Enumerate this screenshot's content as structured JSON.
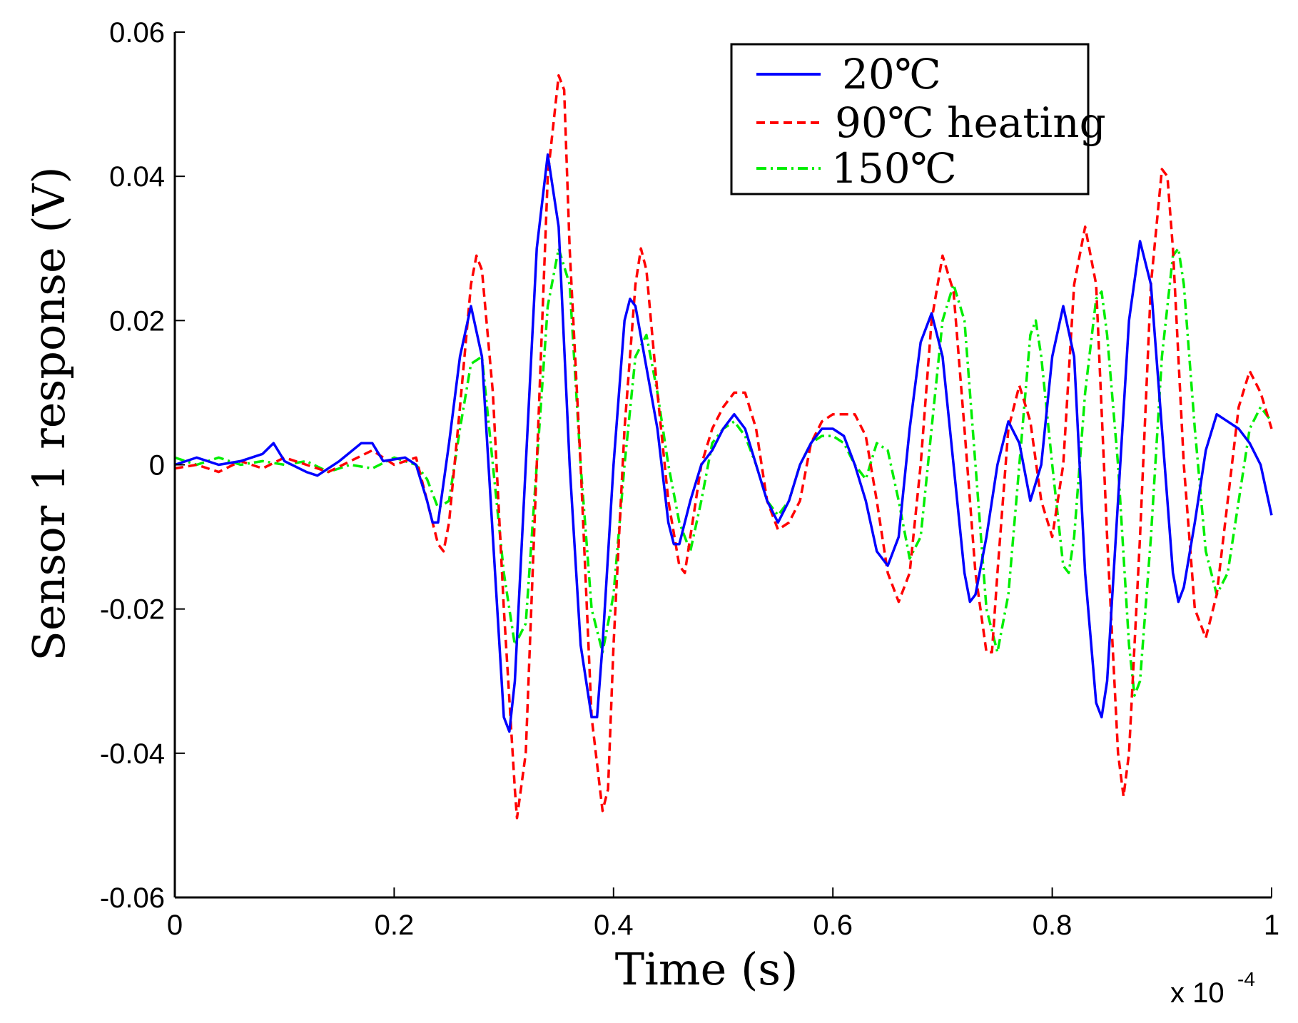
{
  "chart_data": {
    "type": "line",
    "xlabel": "Time (s)",
    "ylabel": "Sensor 1 response (V)",
    "x_multiplier": "x 10",
    "x_multiplier_exp": "-4",
    "xlim": [
      0,
      1
    ],
    "ylim": [
      -0.06,
      0.06
    ],
    "xticks": [
      0,
      0.2,
      0.4,
      0.6,
      0.8,
      1
    ],
    "xtick_labels": [
      "0",
      "0.2",
      "0.4",
      "0.6",
      "0.8",
      "1"
    ],
    "yticks": [
      -0.06,
      -0.04,
      -0.02,
      0,
      0.02,
      0.04,
      0.06
    ],
    "ytick_labels": [
      "-0.06",
      "-0.04",
      "-0.02",
      "0",
      "0.02",
      "0.04",
      "0.06"
    ],
    "grid": false,
    "legend_position": "top-right",
    "series": [
      {
        "name": "20℃",
        "color": "#0000ff",
        "dash": "solid",
        "points": [
          [
            0,
            0
          ],
          [
            0.02,
            0.001
          ],
          [
            0.04,
            0
          ],
          [
            0.06,
            0.0005
          ],
          [
            0.08,
            0.0015
          ],
          [
            0.09,
            0.003
          ],
          [
            0.1,
            0.0005
          ],
          [
            0.12,
            -0.001
          ],
          [
            0.13,
            -0.0015
          ],
          [
            0.15,
            0.0005
          ],
          [
            0.17,
            0.003
          ],
          [
            0.18,
            0.003
          ],
          [
            0.19,
            0.0005
          ],
          [
            0.21,
            0.001
          ],
          [
            0.22,
            0
          ],
          [
            0.23,
            -0.005
          ],
          [
            0.235,
            -0.008
          ],
          [
            0.24,
            -0.008
          ],
          [
            0.25,
            0.003
          ],
          [
            0.26,
            0.015
          ],
          [
            0.27,
            0.022
          ],
          [
            0.28,
            0.015
          ],
          [
            0.29,
            -0.01
          ],
          [
            0.3,
            -0.035
          ],
          [
            0.305,
            -0.037
          ],
          [
            0.31,
            -0.03
          ],
          [
            0.32,
            0
          ],
          [
            0.33,
            0.03
          ],
          [
            0.34,
            0.043
          ],
          [
            0.35,
            0.033
          ],
          [
            0.36,
            0
          ],
          [
            0.37,
            -0.025
          ],
          [
            0.38,
            -0.035
          ],
          [
            0.385,
            -0.035
          ],
          [
            0.39,
            -0.025
          ],
          [
            0.4,
            0
          ],
          [
            0.41,
            0.02
          ],
          [
            0.415,
            0.023
          ],
          [
            0.42,
            0.022
          ],
          [
            0.44,
            0.005
          ],
          [
            0.45,
            -0.008
          ],
          [
            0.455,
            -0.011
          ],
          [
            0.46,
            -0.011
          ],
          [
            0.47,
            -0.005
          ],
          [
            0.48,
            0
          ],
          [
            0.49,
            0.002
          ],
          [
            0.5,
            0.005
          ],
          [
            0.51,
            0.007
          ],
          [
            0.52,
            0.005
          ],
          [
            0.53,
            0
          ],
          [
            0.54,
            -0.005
          ],
          [
            0.55,
            -0.008
          ],
          [
            0.56,
            -0.005
          ],
          [
            0.57,
            0
          ],
          [
            0.58,
            0.003
          ],
          [
            0.59,
            0.005
          ],
          [
            0.6,
            0.005
          ],
          [
            0.61,
            0.004
          ],
          [
            0.62,
            0
          ],
          [
            0.63,
            -0.005
          ],
          [
            0.64,
            -0.012
          ],
          [
            0.65,
            -0.014
          ],
          [
            0.66,
            -0.01
          ],
          [
            0.67,
            0.005
          ],
          [
            0.68,
            0.017
          ],
          [
            0.69,
            0.021
          ],
          [
            0.7,
            0.015
          ],
          [
            0.71,
            0
          ],
          [
            0.72,
            -0.015
          ],
          [
            0.725,
            -0.019
          ],
          [
            0.73,
            -0.018
          ],
          [
            0.74,
            -0.01
          ],
          [
            0.75,
            0
          ],
          [
            0.76,
            0.006
          ],
          [
            0.77,
            0.003
          ],
          [
            0.78,
            -0.005
          ],
          [
            0.79,
            0
          ],
          [
            0.8,
            0.015
          ],
          [
            0.81,
            0.022
          ],
          [
            0.82,
            0.015
          ],
          [
            0.83,
            -0.015
          ],
          [
            0.84,
            -0.033
          ],
          [
            0.845,
            -0.035
          ],
          [
            0.85,
            -0.03
          ],
          [
            0.86,
            -0.005
          ],
          [
            0.87,
            0.02
          ],
          [
            0.88,
            0.031
          ],
          [
            0.89,
            0.025
          ],
          [
            0.9,
            0.005
          ],
          [
            0.91,
            -0.015
          ],
          [
            0.915,
            -0.019
          ],
          [
            0.92,
            -0.017
          ],
          [
            0.93,
            -0.008
          ],
          [
            0.94,
            0.002
          ],
          [
            0.95,
            0.007
          ],
          [
            0.96,
            0.006
          ],
          [
            0.97,
            0.005
          ],
          [
            0.98,
            0.003
          ],
          [
            0.99,
            0
          ],
          [
            1.0,
            -0.007
          ]
        ]
      },
      {
        "name": "90℃ heating",
        "color": "#ff0000",
        "dash": "dashed",
        "points": [
          [
            0,
            -0.0005
          ],
          [
            0.02,
            0
          ],
          [
            0.04,
            -0.001
          ],
          [
            0.06,
            0.0005
          ],
          [
            0.08,
            -0.0005
          ],
          [
            0.1,
            0.001
          ],
          [
            0.12,
            0
          ],
          [
            0.14,
            -0.001
          ],
          [
            0.16,
            0.0005
          ],
          [
            0.18,
            0.002
          ],
          [
            0.2,
            0
          ],
          [
            0.22,
            0.001
          ],
          [
            0.23,
            -0.005
          ],
          [
            0.24,
            -0.011
          ],
          [
            0.245,
            -0.012
          ],
          [
            0.25,
            -0.008
          ],
          [
            0.26,
            0.008
          ],
          [
            0.27,
            0.025
          ],
          [
            0.275,
            0.029
          ],
          [
            0.28,
            0.027
          ],
          [
            0.29,
            0.01
          ],
          [
            0.3,
            -0.02
          ],
          [
            0.31,
            -0.045
          ],
          [
            0.312,
            -0.049
          ],
          [
            0.32,
            -0.04
          ],
          [
            0.33,
            0
          ],
          [
            0.34,
            0.04
          ],
          [
            0.35,
            0.054
          ],
          [
            0.355,
            0.052
          ],
          [
            0.36,
            0.03
          ],
          [
            0.37,
            0
          ],
          [
            0.38,
            -0.035
          ],
          [
            0.39,
            -0.048
          ],
          [
            0.395,
            -0.045
          ],
          [
            0.4,
            -0.025
          ],
          [
            0.41,
            0.005
          ],
          [
            0.42,
            0.025
          ],
          [
            0.425,
            0.03
          ],
          [
            0.43,
            0.027
          ],
          [
            0.44,
            0.01
          ],
          [
            0.45,
            -0.005
          ],
          [
            0.46,
            -0.014
          ],
          [
            0.465,
            -0.015
          ],
          [
            0.47,
            -0.01
          ],
          [
            0.48,
            0
          ],
          [
            0.49,
            0.005
          ],
          [
            0.5,
            0.008
          ],
          [
            0.51,
            0.01
          ],
          [
            0.52,
            0.01
          ],
          [
            0.53,
            0.005
          ],
          [
            0.54,
            -0.005
          ],
          [
            0.55,
            -0.009
          ],
          [
            0.56,
            -0.008
          ],
          [
            0.57,
            -0.005
          ],
          [
            0.58,
            0.003
          ],
          [
            0.59,
            0.006
          ],
          [
            0.6,
            0.007
          ],
          [
            0.61,
            0.007
          ],
          [
            0.62,
            0.007
          ],
          [
            0.63,
            0.004
          ],
          [
            0.64,
            -0.005
          ],
          [
            0.65,
            -0.015
          ],
          [
            0.66,
            -0.019
          ],
          [
            0.67,
            -0.015
          ],
          [
            0.68,
            0
          ],
          [
            0.69,
            0.02
          ],
          [
            0.7,
            0.029
          ],
          [
            0.71,
            0.024
          ],
          [
            0.72,
            0.005
          ],
          [
            0.73,
            -0.015
          ],
          [
            0.74,
            -0.026
          ],
          [
            0.745,
            -0.026
          ],
          [
            0.75,
            -0.015
          ],
          [
            0.76,
            0.005
          ],
          [
            0.77,
            0.011
          ],
          [
            0.78,
            0.006
          ],
          [
            0.79,
            -0.005
          ],
          [
            0.8,
            -0.01
          ],
          [
            0.81,
            0
          ],
          [
            0.82,
            0.025
          ],
          [
            0.83,
            0.033
          ],
          [
            0.84,
            0.025
          ],
          [
            0.85,
            -0.01
          ],
          [
            0.86,
            -0.04
          ],
          [
            0.865,
            -0.046
          ],
          [
            0.87,
            -0.04
          ],
          [
            0.88,
            -0.01
          ],
          [
            0.89,
            0.025
          ],
          [
            0.9,
            0.041
          ],
          [
            0.905,
            0.04
          ],
          [
            0.91,
            0.03
          ],
          [
            0.92,
            0
          ],
          [
            0.93,
            -0.02
          ],
          [
            0.94,
            -0.024
          ],
          [
            0.95,
            -0.018
          ],
          [
            0.96,
            -0.005
          ],
          [
            0.97,
            0.008
          ],
          [
            0.98,
            0.013
          ],
          [
            0.99,
            0.01
          ],
          [
            1.0,
            0.005
          ]
        ]
      },
      {
        "name": "150℃",
        "color": "#00ee00",
        "dash": "dashdot",
        "points": [
          [
            0,
            0.001
          ],
          [
            0.02,
            0
          ],
          [
            0.04,
            0.001
          ],
          [
            0.06,
            0
          ],
          [
            0.08,
            0.0005
          ],
          [
            0.1,
            0
          ],
          [
            0.12,
            0.0005
          ],
          [
            0.14,
            -0.001
          ],
          [
            0.16,
            0
          ],
          [
            0.18,
            -0.0005
          ],
          [
            0.2,
            0.001
          ],
          [
            0.22,
            0
          ],
          [
            0.23,
            -0.002
          ],
          [
            0.24,
            -0.006
          ],
          [
            0.25,
            -0.005
          ],
          [
            0.26,
            0.005
          ],
          [
            0.27,
            0.014
          ],
          [
            0.28,
            0.015
          ],
          [
            0.29,
            0
          ],
          [
            0.3,
            -0.015
          ],
          [
            0.31,
            -0.025
          ],
          [
            0.32,
            -0.022
          ],
          [
            0.33,
            0
          ],
          [
            0.34,
            0.022
          ],
          [
            0.35,
            0.03
          ],
          [
            0.36,
            0.025
          ],
          [
            0.37,
            0
          ],
          [
            0.38,
            -0.02
          ],
          [
            0.39,
            -0.026
          ],
          [
            0.4,
            -0.018
          ],
          [
            0.41,
            0
          ],
          [
            0.42,
            0.015
          ],
          [
            0.43,
            0.018
          ],
          [
            0.44,
            0.01
          ],
          [
            0.45,
            0
          ],
          [
            0.46,
            -0.008
          ],
          [
            0.47,
            -0.012
          ],
          [
            0.48,
            -0.005
          ],
          [
            0.49,
            0.003
          ],
          [
            0.5,
            0.005
          ],
          [
            0.51,
            0.006
          ],
          [
            0.52,
            0.004
          ],
          [
            0.53,
            0
          ],
          [
            0.54,
            -0.005
          ],
          [
            0.55,
            -0.007
          ],
          [
            0.56,
            -0.005
          ],
          [
            0.57,
            0
          ],
          [
            0.58,
            0.003
          ],
          [
            0.59,
            0.004
          ],
          [
            0.6,
            0.004
          ],
          [
            0.61,
            0.003
          ],
          [
            0.62,
            0
          ],
          [
            0.63,
            -0.002
          ],
          [
            0.64,
            0.003
          ],
          [
            0.65,
            0.002
          ],
          [
            0.66,
            -0.005
          ],
          [
            0.67,
            -0.013
          ],
          [
            0.68,
            -0.01
          ],
          [
            0.69,
            0.005
          ],
          [
            0.7,
            0.02
          ],
          [
            0.71,
            0.025
          ],
          [
            0.72,
            0.02
          ],
          [
            0.73,
            0
          ],
          [
            0.74,
            -0.02
          ],
          [
            0.75,
            -0.026
          ],
          [
            0.76,
            -0.018
          ],
          [
            0.77,
            0
          ],
          [
            0.78,
            0.018
          ],
          [
            0.785,
            0.02
          ],
          [
            0.79,
            0.015
          ],
          [
            0.8,
            0
          ],
          [
            0.81,
            -0.014
          ],
          [
            0.815,
            -0.015
          ],
          [
            0.82,
            -0.01
          ],
          [
            0.83,
            0.01
          ],
          [
            0.84,
            0.023
          ],
          [
            0.845,
            0.024
          ],
          [
            0.85,
            0.018
          ],
          [
            0.86,
            0
          ],
          [
            0.87,
            -0.025
          ],
          [
            0.875,
            -0.032
          ],
          [
            0.88,
            -0.03
          ],
          [
            0.89,
            -0.01
          ],
          [
            0.9,
            0.015
          ],
          [
            0.91,
            0.029
          ],
          [
            0.915,
            0.03
          ],
          [
            0.92,
            0.025
          ],
          [
            0.93,
            0.005
          ],
          [
            0.94,
            -0.012
          ],
          [
            0.95,
            -0.018
          ],
          [
            0.96,
            -0.015
          ],
          [
            0.97,
            -0.005
          ],
          [
            0.98,
            0.005
          ],
          [
            0.99,
            0.008
          ],
          [
            1.0,
            0.006
          ]
        ]
      }
    ]
  }
}
